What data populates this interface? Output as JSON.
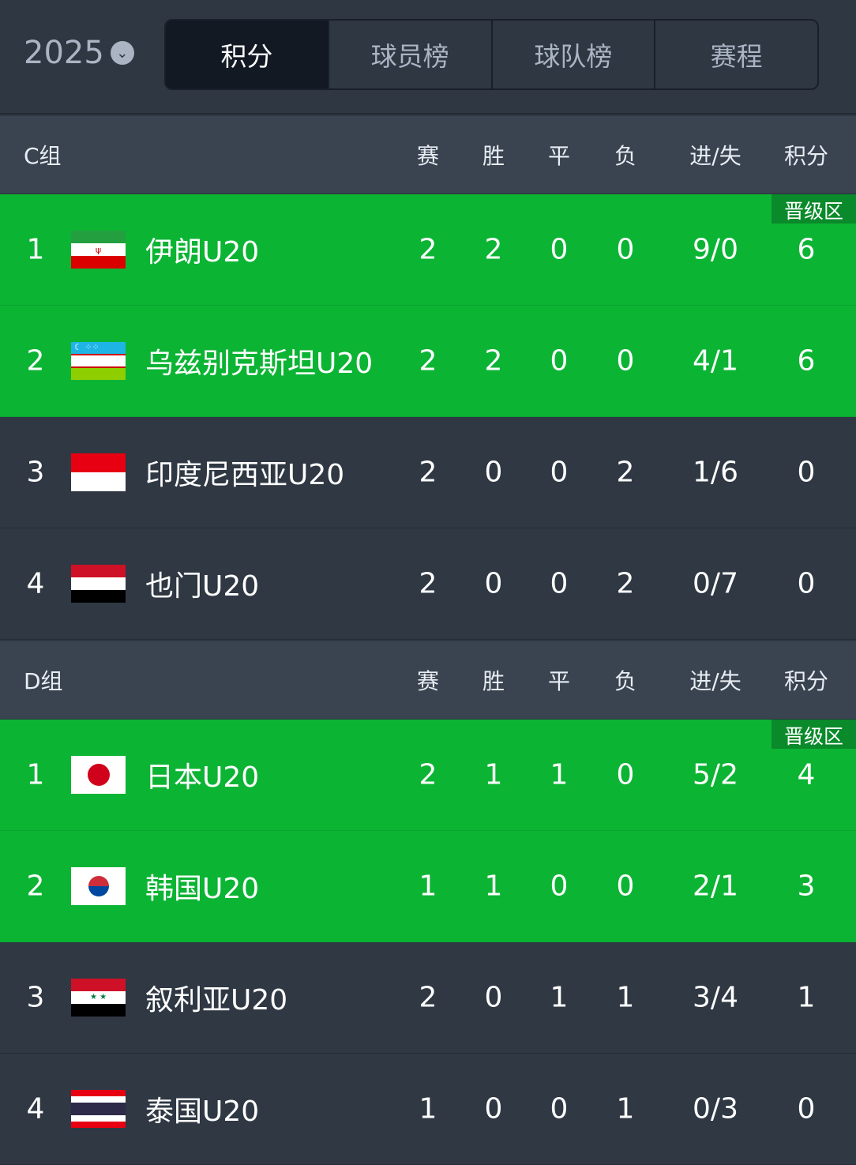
{
  "header": {
    "year": "2025",
    "tabs": [
      {
        "label": "积分",
        "active": true
      },
      {
        "label": "球员榜"
      },
      {
        "label": "球队榜"
      },
      {
        "label": "赛程"
      }
    ]
  },
  "columns": [
    "赛",
    "胜",
    "平",
    "负",
    "进/失",
    "积分"
  ],
  "qualify_badge": "晋级区",
  "colors": {
    "qualify": "#0cb434",
    "background": "#2f3843"
  },
  "groups": [
    {
      "name": "C组",
      "teams": [
        {
          "rank": "1",
          "name": "伊朗U20",
          "flag": "iran",
          "p": "2",
          "w": "2",
          "d": "0",
          "l": "0",
          "gd": "9/0",
          "pts": "6",
          "qualify": true
        },
        {
          "rank": "2",
          "name": "乌兹别克斯坦U20",
          "flag": "uzbekistan",
          "p": "2",
          "w": "2",
          "d": "0",
          "l": "0",
          "gd": "4/1",
          "pts": "6",
          "qualify": true
        },
        {
          "rank": "3",
          "name": "印度尼西亚U20",
          "flag": "indonesia",
          "p": "2",
          "w": "0",
          "d": "0",
          "l": "2",
          "gd": "1/6",
          "pts": "0"
        },
        {
          "rank": "4",
          "name": "也门U20",
          "flag": "yemen",
          "p": "2",
          "w": "0",
          "d": "0",
          "l": "2",
          "gd": "0/7",
          "pts": "0"
        }
      ]
    },
    {
      "name": "D组",
      "teams": [
        {
          "rank": "1",
          "name": "日本U20",
          "flag": "japan",
          "p": "2",
          "w": "1",
          "d": "1",
          "l": "0",
          "gd": "5/2",
          "pts": "4",
          "qualify": true
        },
        {
          "rank": "2",
          "name": "韩国U20",
          "flag": "korea",
          "p": "1",
          "w": "1",
          "d": "0",
          "l": "0",
          "gd": "2/1",
          "pts": "3",
          "qualify": true
        },
        {
          "rank": "3",
          "name": "叙利亚U20",
          "flag": "syria",
          "p": "2",
          "w": "0",
          "d": "1",
          "l": "1",
          "gd": "3/4",
          "pts": "1"
        },
        {
          "rank": "4",
          "name": "泰国U20",
          "flag": "thailand",
          "p": "1",
          "w": "0",
          "d": "0",
          "l": "1",
          "gd": "0/3",
          "pts": "0"
        }
      ]
    }
  ]
}
